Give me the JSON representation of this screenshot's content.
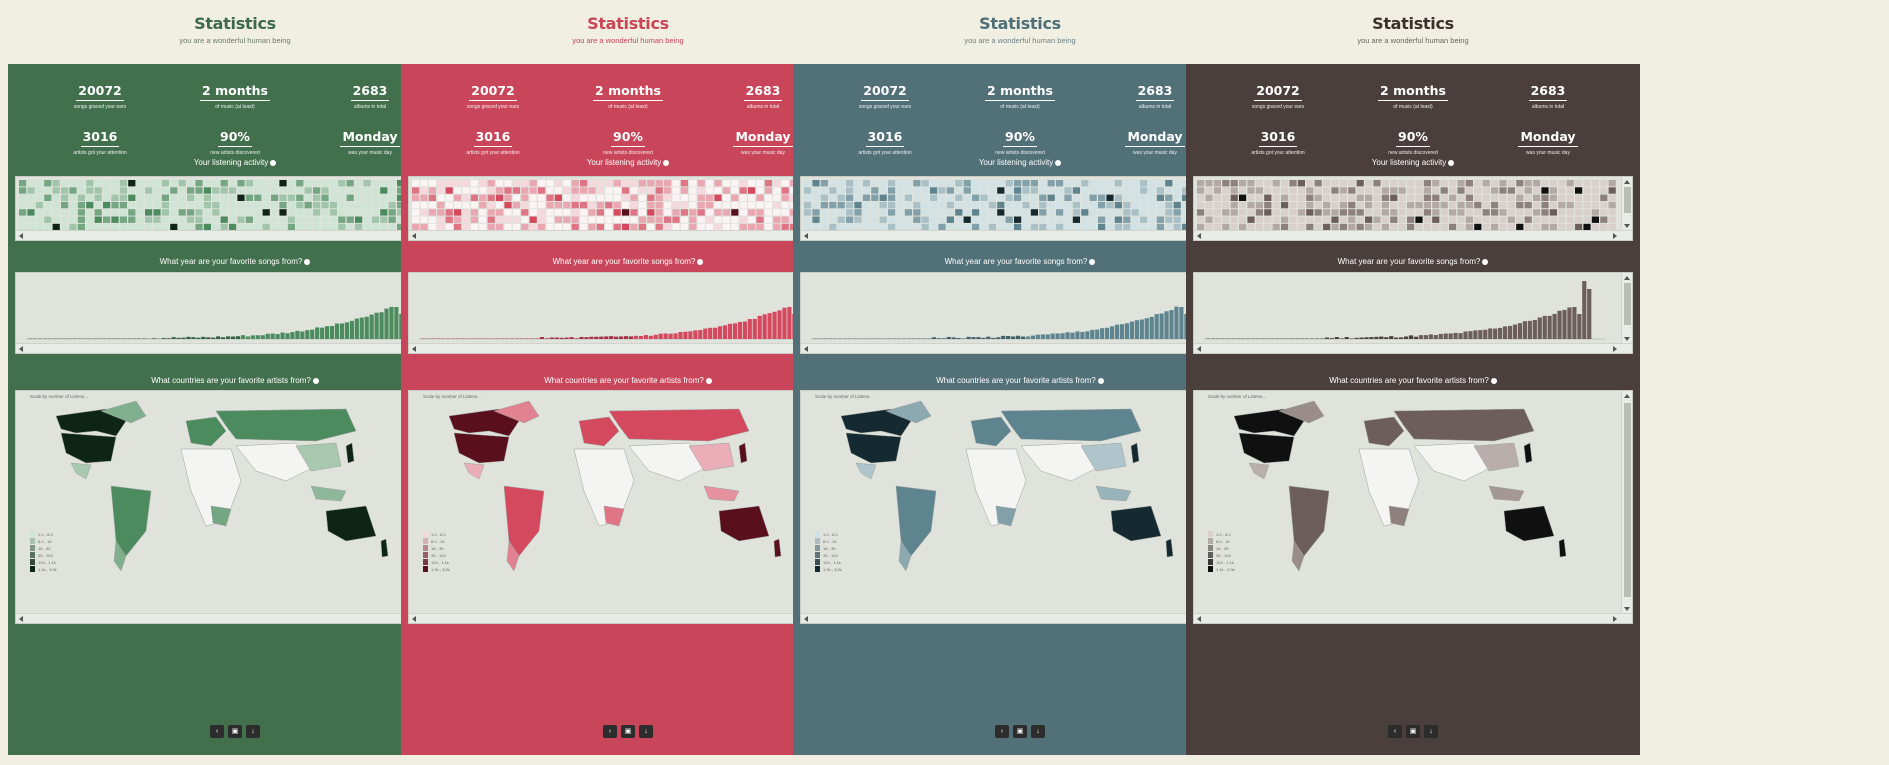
{
  "header": {
    "title": "Statistics",
    "subtitle": "you are a wonderful human being"
  },
  "stats": [
    {
      "value": "20072",
      "label": "songs graced your ears"
    },
    {
      "value": "2 months",
      "label": "of music (at least)"
    },
    {
      "value": "2683",
      "label": "albums in total"
    },
    {
      "value": "3016",
      "label": "artists got your attention"
    },
    {
      "value": "90%",
      "label": "new artists discovered"
    },
    {
      "value": "Monday",
      "label": "was your music day"
    }
  ],
  "sections": {
    "activity": "Your listening activity",
    "years": "What year are your favorite songs from?",
    "countries": "What countries are your favorite artists from?"
  },
  "map_caption": "Scale by number of Listens...",
  "map_legend": [
    "1.0 - 8.0",
    "8.0 - 16",
    "16 - 35",
    "35 - 104",
    "104 - 1.1k",
    "1.1k - 3.0k"
  ],
  "actions": [
    {
      "icon": "share-icon",
      "glyph": "‹"
    },
    {
      "icon": "copy-icon",
      "glyph": "▣"
    },
    {
      "icon": "download-icon",
      "glyph": "↓"
    }
  ],
  "themes": [
    {
      "name": "green",
      "panel": "#42704d",
      "title": "#3e6a4b",
      "sub": "#6a7d6c",
      "dark": "#0e2416",
      "mid": "#4c8b5d",
      "light": "#cfe4d4"
    },
    {
      "name": "red",
      "panel": "#c9465a",
      "title": "#c94558",
      "sub": "#c94558",
      "dark": "#5a0f1d",
      "mid": "#d5495f",
      "light": "#f5d8dd"
    },
    {
      "name": "teal",
      "panel": "#527078",
      "title": "#4e6f77",
      "sub": "#6d8287",
      "dark": "#142a30",
      "mid": "#5e8490",
      "light": "#d2e1e4"
    },
    {
      "name": "brown",
      "panel": "#4a3f3c",
      "title": "#3b302e",
      "sub": "#6b6260",
      "dark": "#111010",
      "mid": "#6e5e5b",
      "light": "#d9d0ce"
    }
  ]
}
